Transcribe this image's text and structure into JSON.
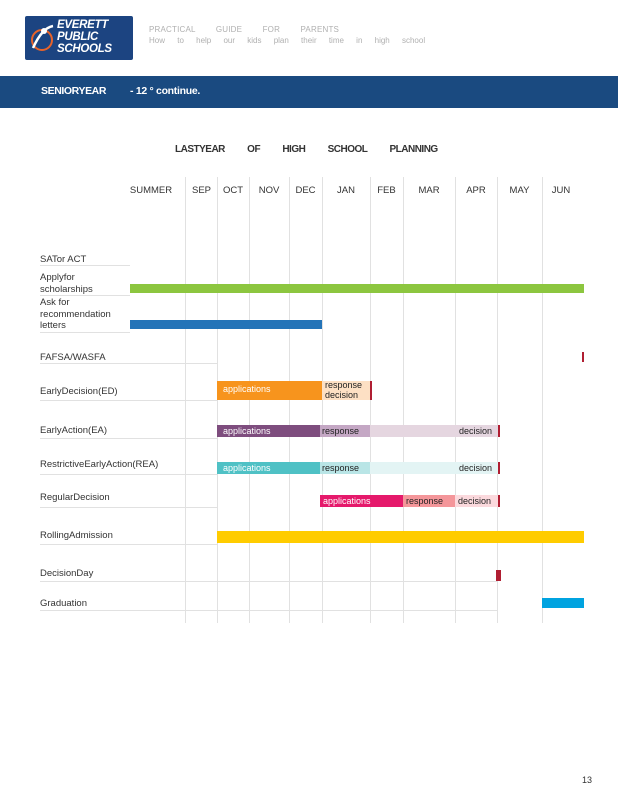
{
  "header": {
    "logo_text": "EVERETT PUBLIC SCHOOLS",
    "guide_title": "PRACTICAL GUIDE FOR PARENTS",
    "guide_subtitle": "How to help our kids plan their time in high school"
  },
  "banner": {
    "left": "SENIORYEAR",
    "right": "- 12 ° continue."
  },
  "chart_title": "LASTYEAR OF HIGH SCHOOL PLANNING",
  "months": [
    "SUMMER",
    "SEP",
    "OCT",
    "NOV",
    "DEC",
    "JAN",
    "FEB",
    "MAR",
    "APR",
    "MAY",
    "JUN"
  ],
  "rows": [
    "SATor ACT",
    "Applyfor scholarships",
    "Ask for recommendation letters",
    "FAFSA/WASFA",
    "EarlyDecision(ED)",
    "EarlyAction(EA)",
    "RestrictiveEarlyAction(REA)",
    "RegularDecision",
    "RollingAdmission",
    "DecisionDay",
    "Graduation"
  ],
  "segments": {
    "ed_applications": "applications",
    "ed_response_decision_1": "response",
    "ed_response_decision_2": "decision",
    "ea_applications": "applications",
    "ea_response": "response",
    "ea_decision": "decision",
    "rea_applications": "applications",
    "rea_response": "response",
    "rea_decision": "decision",
    "rd_applications": "applications",
    "rd_response": "response",
    "rd_decision": "decision"
  },
  "colors": {
    "banner": "#1a4a80",
    "scholarships": "#8cc63f",
    "recommendation": "#2474b8",
    "tick": "#b01e32",
    "ed_applications": "#f7941d",
    "ed_response": "#fde0c4",
    "ea_applications": "#7e4d7e",
    "ea_response": "#c4a7c4",
    "ea_decision": "#e5d6e0",
    "rea_applications": "#4fc1c5",
    "rea_response": "#b9e5e6",
    "rea_decision": "#e3f4f4",
    "rd_applications": "#e5196b",
    "rd_response": "#f4969a",
    "rd_decision": "#fbd9dd",
    "rolling": "#ffcc00",
    "graduation": "#00a3e0"
  },
  "page_number": "13"
}
